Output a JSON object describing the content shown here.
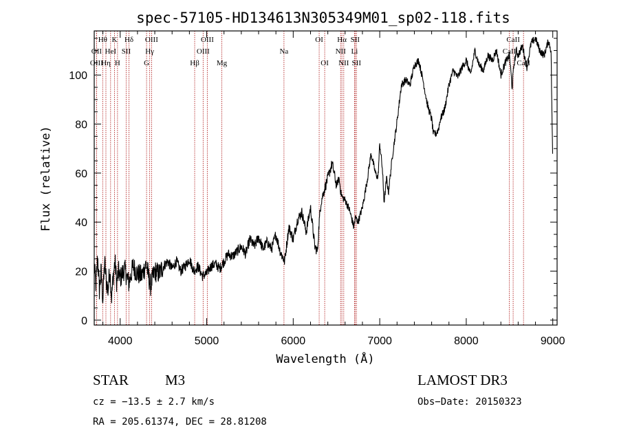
{
  "chart_data": {
    "type": "line",
    "title": "spec-57105-HD134613N305349M01_sp02-118.fits",
    "xlabel": "Wavelength (Å)",
    "ylabel": "Flux (relative)",
    "xlim": [
      3700,
      9050
    ],
    "ylim": [
      -2,
      118
    ],
    "x_ticks": [
      4000,
      5000,
      6000,
      7000,
      8000,
      9000
    ],
    "x_tick_labels": [
      "4000",
      "5000",
      "6000",
      "7000",
      "8000",
      "9000"
    ],
    "y_ticks": [
      0,
      20,
      40,
      60,
      80,
      100
    ],
    "y_tick_labels": [
      "0",
      "20",
      "40",
      "60",
      "80",
      "100"
    ],
    "series": [
      {
        "name": "flux",
        "color": "#000000",
        "x": [
          3700,
          3720,
          3740,
          3760,
          3780,
          3800,
          3820,
          3840,
          3860,
          3880,
          3900,
          3920,
          3940,
          3960,
          3980,
          4000,
          4050,
          4100,
          4150,
          4200,
          4250,
          4300,
          4350,
          4400,
          4450,
          4500,
          4550,
          4600,
          4650,
          4700,
          4750,
          4800,
          4850,
          4900,
          4950,
          5000,
          5050,
          5100,
          5150,
          5200,
          5250,
          5300,
          5350,
          5400,
          5450,
          5500,
          5550,
          5600,
          5650,
          5700,
          5750,
          5800,
          5850,
          5900,
          5950,
          6000,
          6050,
          6100,
          6150,
          6200,
          6250,
          6280,
          6300,
          6320,
          6350,
          6400,
          6450,
          6500,
          6530,
          6550,
          6570,
          6600,
          6650,
          6700,
          6720,
          6750,
          6800,
          6850,
          6900,
          6950,
          6980,
          7000,
          7030,
          7050,
          7080,
          7100,
          7150,
          7200,
          7250,
          7300,
          7350,
          7400,
          7450,
          7500,
          7550,
          7600,
          7620,
          7650,
          7680,
          7700,
          7750,
          7800,
          7850,
          7900,
          7950,
          8000,
          8050,
          8100,
          8150,
          8200,
          8250,
          8300,
          8350,
          8400,
          8450,
          8500,
          8530,
          8550,
          8580,
          8600,
          8650,
          8700,
          8750,
          8800,
          8850,
          8900,
          8950,
          8980,
          9000
        ],
        "y": [
          22,
          14,
          26,
          12,
          20,
          8,
          24,
          16,
          12,
          21,
          9,
          18,
          24,
          15,
          20,
          17,
          21,
          15,
          22,
          19,
          18,
          23,
          14,
          20,
          19,
          22,
          24,
          21,
          24,
          20,
          22,
          25,
          20,
          22,
          18,
          19,
          22,
          23,
          21,
          24,
          27,
          26,
          28,
          30,
          27,
          33,
          30,
          34,
          29,
          32,
          29,
          35,
          28,
          24,
          38,
          33,
          41,
          44,
          36,
          46,
          30,
          28,
          40,
          48,
          52,
          58,
          64,
          55,
          58,
          52,
          50,
          49,
          45,
          38,
          42,
          40,
          46,
          56,
          68,
          60,
          58,
          72,
          62,
          48,
          58,
          52,
          68,
          81,
          96,
          98,
          96,
          104,
          106,
          98,
          88,
          82,
          76,
          76,
          78,
          82,
          86,
          96,
          102,
          99,
          103,
          106,
          100,
          110,
          104,
          102,
          108,
          106,
          110,
          100,
          105,
          108,
          95,
          104,
          110,
          108,
          112,
          103,
          113,
          115,
          110,
          108,
          114,
          110,
          62
        ]
      }
    ],
    "spectral_lines": [
      {
        "label": "Hθ",
        "wavelength": 3798,
        "row": 1
      },
      {
        "label": "OII",
        "wavelength": 3727,
        "row": 2
      },
      {
        "label": "OIII",
        "wavelength": 3727,
        "row": 3
      },
      {
        "label": "K",
        "wavelength": 3934,
        "row": 1
      },
      {
        "label": "HeI",
        "wavelength": 3889,
        "row": 2
      },
      {
        "label": "Hη",
        "wavelength": 3835,
        "row": 3
      },
      {
        "label": "Hδ",
        "wavelength": 4102,
        "row": 1
      },
      {
        "label": "SII",
        "wavelength": 4069,
        "row": 2
      },
      {
        "label": "H",
        "wavelength": 3969,
        "row": 3
      },
      {
        "label": "OIII",
        "wavelength": 4363,
        "row": 1
      },
      {
        "label": "Hγ",
        "wavelength": 4341,
        "row": 2
      },
      {
        "label": "G",
        "wavelength": 4305,
        "row": 3
      },
      {
        "label": "OIII",
        "wavelength": 5007,
        "row": 1
      },
      {
        "label": "OIII",
        "wavelength": 4959,
        "row": 2
      },
      {
        "label": "Hβ",
        "wavelength": 4861,
        "row": 3
      },
      {
        "label": "Mg",
        "wavelength": 5175,
        "row": 3
      },
      {
        "label": "Na",
        "wavelength": 5893,
        "row": 2
      },
      {
        "label": "OI",
        "wavelength": 6300,
        "row": 1
      },
      {
        "label": "OI",
        "wavelength": 6364,
        "row": 3
      },
      {
        "label": "Hα",
        "wavelength": 6563,
        "row": 1
      },
      {
        "label": "NII",
        "wavelength": 6548,
        "row": 2
      },
      {
        "label": "NII",
        "wavelength": 6584,
        "row": 3
      },
      {
        "label": "SII",
        "wavelength": 6716,
        "row": 1
      },
      {
        "label": "Li",
        "wavelength": 6708,
        "row": 2
      },
      {
        "label": "SII",
        "wavelength": 6731,
        "row": 3
      },
      {
        "label": "CaII",
        "wavelength": 8542,
        "row": 1
      },
      {
        "label": "CaII",
        "wavelength": 8498,
        "row": 2
      },
      {
        "label": "CaII",
        "wavelength": 8662,
        "row": 3
      }
    ]
  },
  "info": {
    "object_class": "STAR",
    "subclass": "M3",
    "survey": "LAMOST DR3",
    "redshift": "cz = −13.5 ± 2.7 km/s",
    "obs_date": "Obs−Date: 20150323",
    "coords": "RA = 205.61374, DEC =  28.81208"
  },
  "colors": {
    "line_marker": "#b22222",
    "spectrum": "#000000"
  }
}
